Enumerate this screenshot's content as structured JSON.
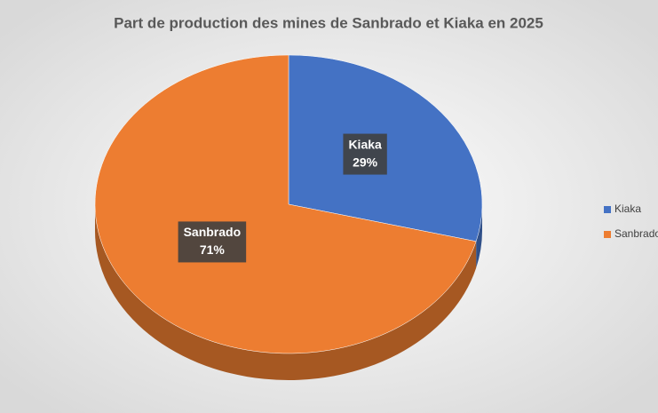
{
  "chart_data": {
    "type": "pie",
    "title": "Part de production des mines de Sanbrado et Kiaka  en 2025",
    "categories": [
      "Kiaka",
      "Sanbrado"
    ],
    "values": [
      29,
      71
    ],
    "value_labels": [
      "29%",
      "71%"
    ],
    "colors": [
      "#4472c4",
      "#ed7d31"
    ],
    "legend": "right"
  }
}
